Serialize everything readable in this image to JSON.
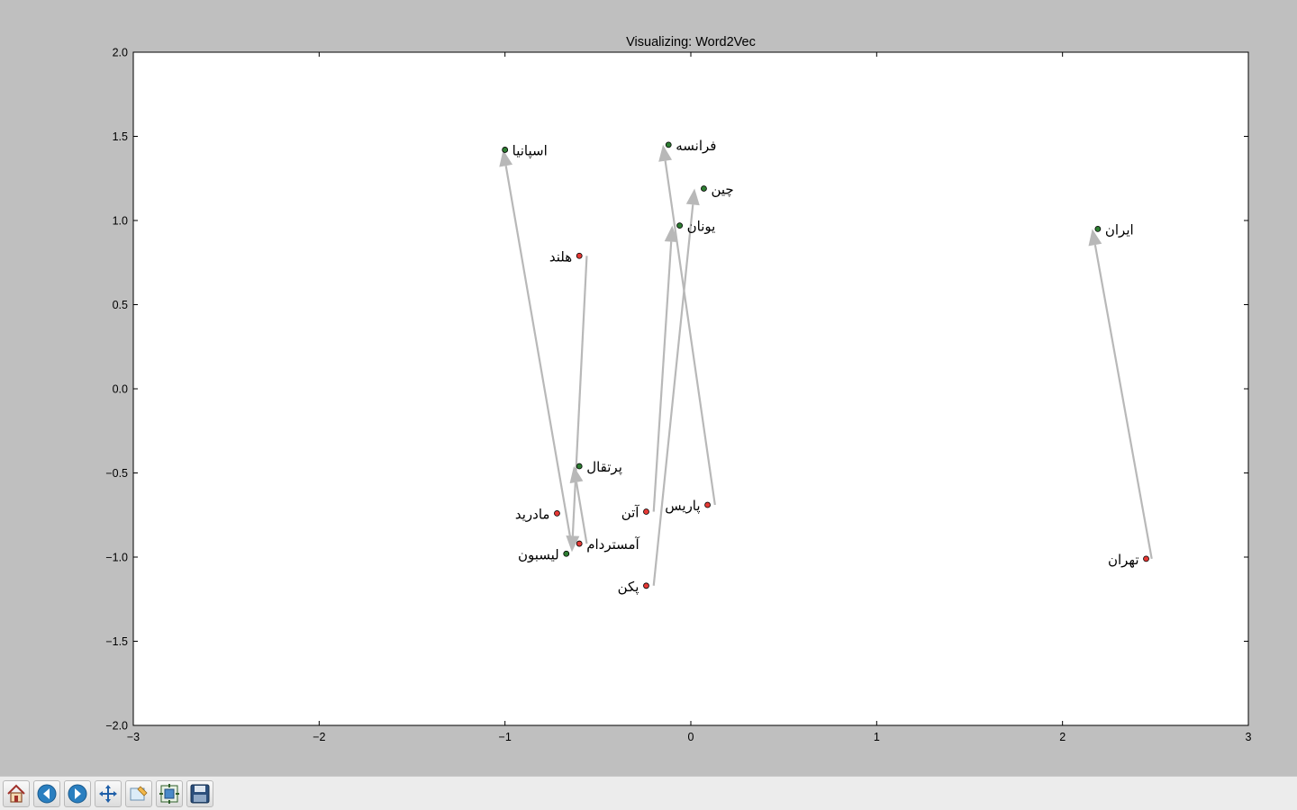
{
  "window": {
    "toolbar": {
      "buttons": [
        {
          "name": "home-button",
          "icon": "home-icon",
          "tooltip": ""
        },
        {
          "name": "back-button",
          "icon": "back-arrow-icon",
          "tooltip": ""
        },
        {
          "name": "forward-button",
          "icon": "forward-arrow-icon",
          "tooltip": ""
        },
        {
          "name": "pan-button",
          "icon": "pan-move-icon",
          "tooltip": ""
        },
        {
          "name": "zoom-button",
          "icon": "zoom-rect-icon",
          "tooltip": ""
        },
        {
          "name": "configure-subplots-button",
          "icon": "subplots-icon",
          "tooltip": ""
        },
        {
          "name": "save-figure-button",
          "icon": "floppy-disk-icon",
          "tooltip": ""
        }
      ]
    }
  },
  "chart_data": {
    "type": "scatter",
    "title": "Visualizing: Word2Vec",
    "xlabel": "",
    "ylabel": "",
    "xlim": [
      -3,
      3
    ],
    "ylim": [
      -2,
      2
    ],
    "xticks": [
      -3,
      -2,
      -1,
      0,
      1,
      2,
      3
    ],
    "yticks": [
      -2.0,
      -1.5,
      -1.0,
      -0.5,
      0.0,
      0.5,
      1.0,
      1.5,
      2.0
    ],
    "xtick_labels": [
      "−3",
      "−2",
      "−1",
      "0",
      "1",
      "2",
      "3"
    ],
    "ytick_labels": [
      "−2.0",
      "−1.5",
      "−1.0",
      "−0.5",
      "0.0",
      "0.5",
      "1.0",
      "1.5",
      "2.0"
    ],
    "grid": false,
    "colors": {
      "country": "#2e7d32",
      "capital": "#e53935",
      "arrow": "#b8b8b8",
      "background": "#ffffff"
    },
    "points": [
      {
        "label": "اسپانیا",
        "x": -1.0,
        "y": 1.42,
        "group": "country",
        "label_side": "right"
      },
      {
        "label": "فرانسه",
        "x": -0.12,
        "y": 1.45,
        "group": "country",
        "label_side": "right"
      },
      {
        "label": "چین",
        "x": 0.07,
        "y": 1.19,
        "group": "country",
        "label_side": "right"
      },
      {
        "label": "یونان",
        "x": -0.06,
        "y": 0.97,
        "group": "country",
        "label_side": "right"
      },
      {
        "label": "ایران",
        "x": 2.19,
        "y": 0.95,
        "group": "country",
        "label_side": "right"
      },
      {
        "label": "پرتقال",
        "x": -0.6,
        "y": -0.46,
        "group": "country",
        "label_side": "right"
      },
      {
        "label": "هلند",
        "x": -0.6,
        "y": 0.79,
        "group": "capital",
        "label_side": "left"
      },
      {
        "label": "مادرید",
        "x": -0.72,
        "y": -0.74,
        "group": "capital",
        "label_side": "left"
      },
      {
        "label": "آمستردام",
        "x": -0.6,
        "y": -0.92,
        "group": "capital",
        "label_side": "right"
      },
      {
        "label": "لیسبون",
        "x": -0.67,
        "y": -0.98,
        "group": "country",
        "label_side": "left"
      },
      {
        "label": "آتن",
        "x": -0.24,
        "y": -0.73,
        "group": "capital",
        "label_side": "left"
      },
      {
        "label": "پاریس",
        "x": 0.09,
        "y": -0.69,
        "group": "capital",
        "label_side": "left"
      },
      {
        "label": "پکن",
        "x": -0.24,
        "y": -1.17,
        "group": "capital",
        "label_side": "left"
      },
      {
        "label": "تهران",
        "x": 2.45,
        "y": -1.01,
        "group": "capital",
        "label_side": "left"
      }
    ],
    "arrows": [
      {
        "from": [
          -0.56,
          0.79
        ],
        "to": [
          -0.64,
          -0.97
        ]
      },
      {
        "from": [
          -0.64,
          -0.94
        ],
        "to": [
          -1.01,
          1.42
        ]
      },
      {
        "from": [
          -0.56,
          -0.92
        ],
        "to": [
          -0.63,
          -0.46
        ]
      },
      {
        "from": [
          -0.2,
          -0.73
        ],
        "to": [
          -0.1,
          0.97
        ]
      },
      {
        "from": [
          0.13,
          -0.69
        ],
        "to": [
          -0.15,
          1.45
        ]
      },
      {
        "from": [
          -0.2,
          -1.17
        ],
        "to": [
          0.02,
          1.19
        ]
      },
      {
        "from": [
          2.48,
          -1.01
        ],
        "to": [
          2.16,
          0.95
        ]
      }
    ]
  }
}
